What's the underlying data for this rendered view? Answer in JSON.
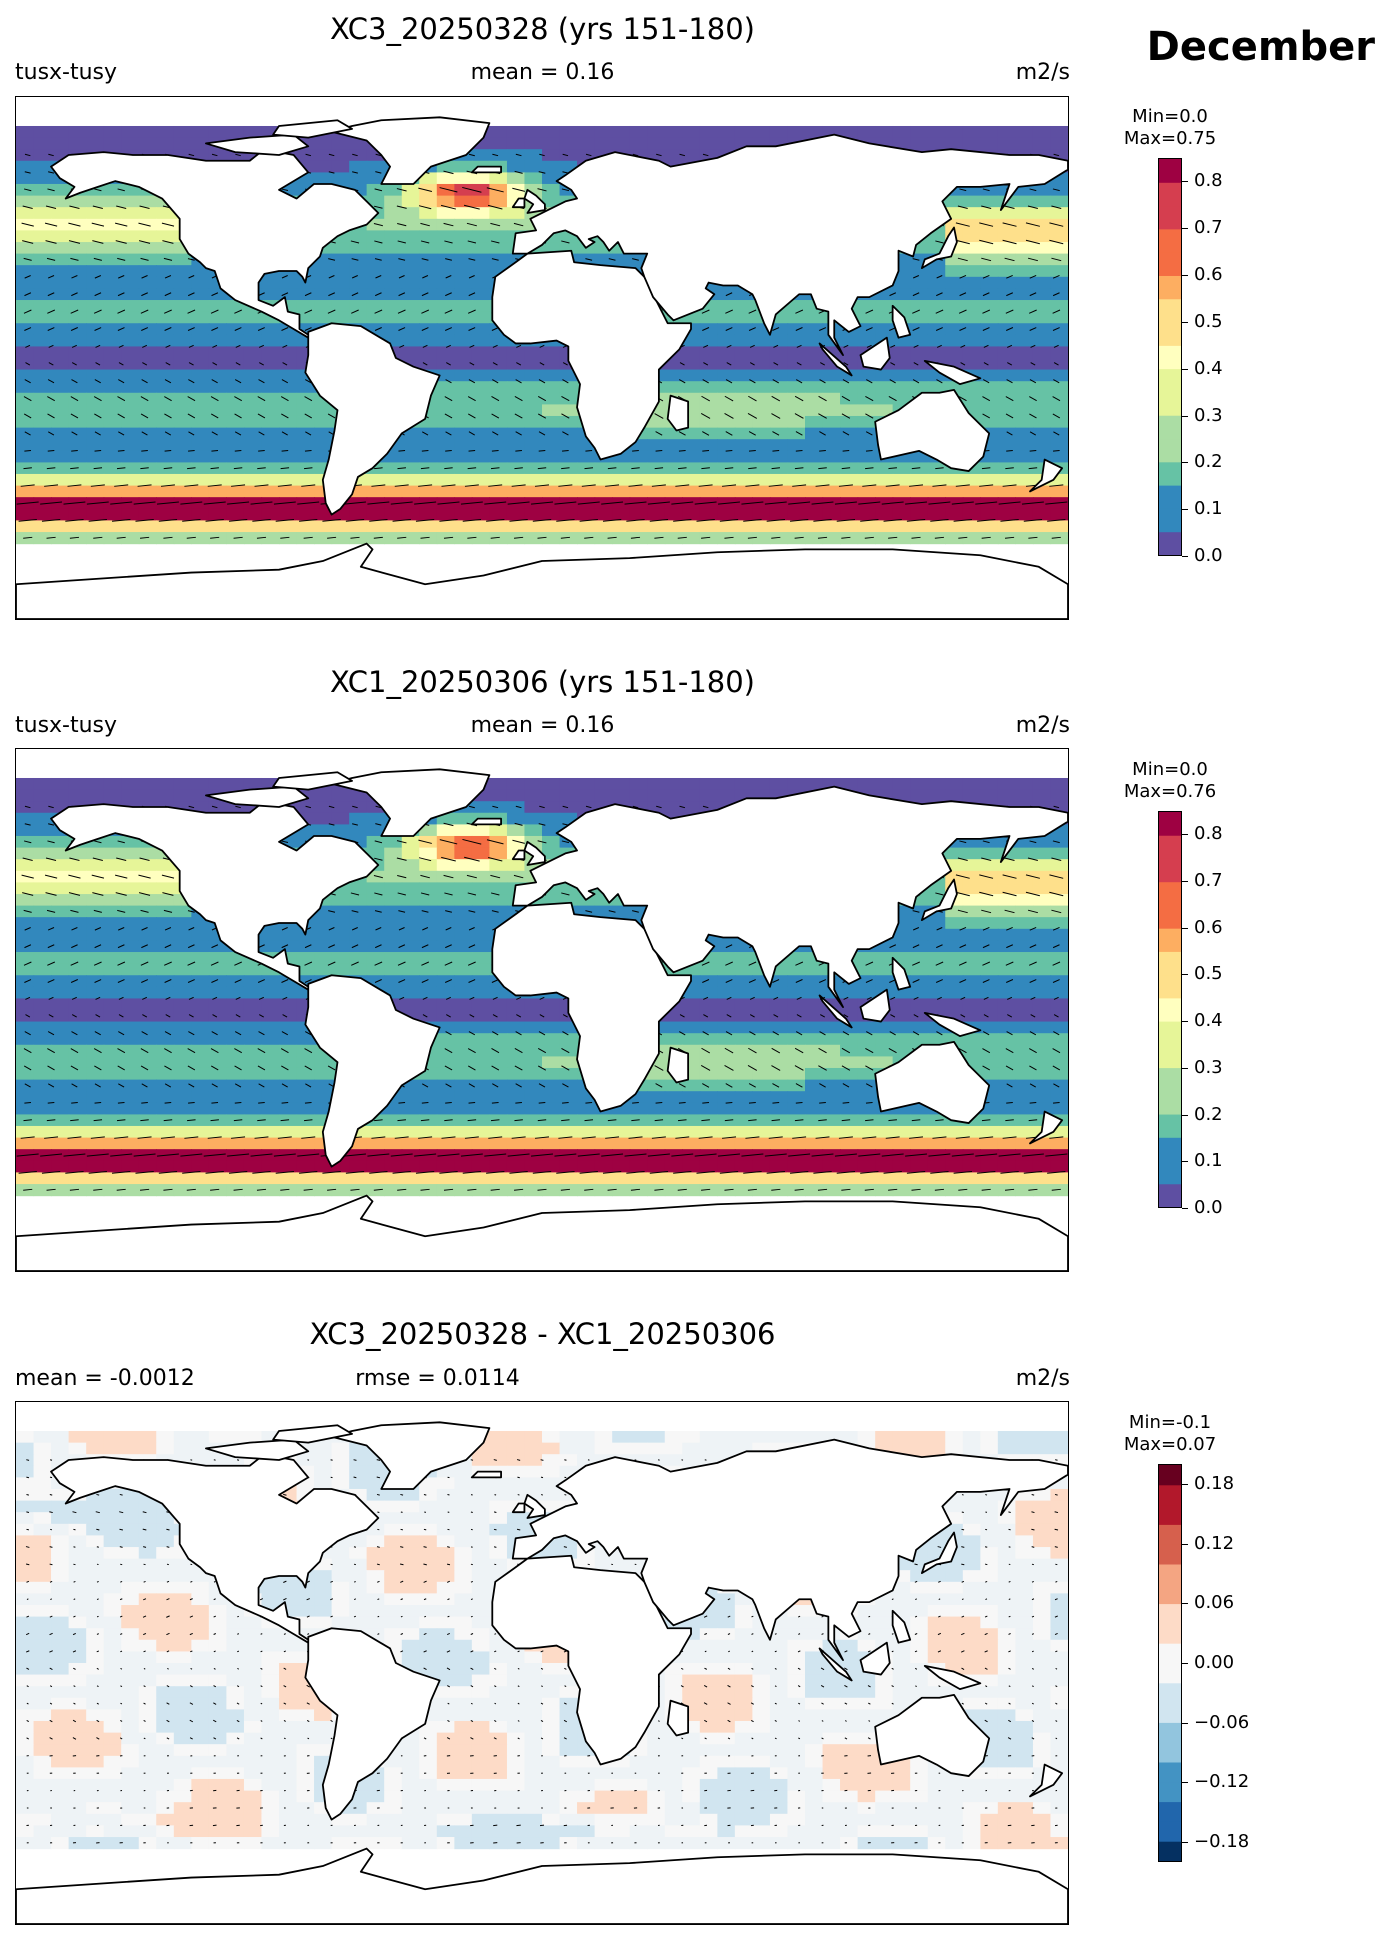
{
  "month_label": "December",
  "panels": [
    {
      "title": "XC3_20250328 (yrs 151-180)",
      "left_label": "tusx-tusy",
      "center_label": "mean = 0.16",
      "right_label": "m2/s",
      "colorbar": {
        "min_label": "Min=0.0",
        "max_label": "Max=0.75",
        "ticks": [
          "0.8",
          "0.7",
          "0.6",
          "0.5",
          "0.4",
          "0.3",
          "0.2",
          "0.1",
          "0.0"
        ]
      }
    },
    {
      "title": "XC1_20250306 (yrs 151-180)",
      "left_label": "tusx-tusy",
      "center_label": "mean = 0.16",
      "right_label": "m2/s",
      "colorbar": {
        "min_label": "Min=0.0",
        "max_label": "Max=0.76",
        "ticks": [
          "0.8",
          "0.7",
          "0.6",
          "0.5",
          "0.4",
          "0.3",
          "0.2",
          "0.1",
          "0.0"
        ]
      }
    },
    {
      "title": "XC3_20250328 - XC1_20250306",
      "left_label": "mean = -0.0012",
      "center_label": "rmse = 0.0114",
      "right_label": "m2/s",
      "colorbar": {
        "min_label": "Min=-0.1",
        "max_label": "Max=0.07",
        "ticks": [
          "0.18",
          "0.12",
          "0.06",
          "0.00",
          "−0.06",
          "−0.12",
          "−0.18"
        ]
      }
    }
  ],
  "chart_data": [
    {
      "type": "heatmap",
      "title": "XC3_20250328 (yrs 151-180)",
      "variable": "tusx-tusy",
      "units": "m2/s",
      "mean": 0.16,
      "min": 0.0,
      "max": 0.75,
      "colorbar_range": [
        0.0,
        0.85
      ],
      "colormap": "Spectral_r",
      "overlay": "vector arrows"
    },
    {
      "type": "heatmap",
      "title": "XC1_20250306 (yrs 151-180)",
      "variable": "tusx-tusy",
      "units": "m2/s",
      "mean": 0.16,
      "min": 0.0,
      "max": 0.76,
      "colorbar_range": [
        0.0,
        0.85
      ],
      "colormap": "Spectral_r",
      "overlay": "vector arrows"
    },
    {
      "type": "heatmap",
      "title": "XC3_20250328 - XC1_20250306",
      "units": "m2/s",
      "mean": -0.0012,
      "rmse": 0.0114,
      "min": -0.1,
      "max": 0.07,
      "colorbar_range": [
        -0.2,
        0.2
      ],
      "colormap": "RdBu_r",
      "overlay": "vector arrows"
    }
  ],
  "colors": {
    "seq": [
      "#5e4fa2",
      "#3288bd",
      "#66c2a5",
      "#abdda4",
      "#e6f598",
      "#ffffbf",
      "#fee08b",
      "#fdae61",
      "#f46d43",
      "#d53e4f",
      "#9e0142"
    ],
    "div": [
      "#053061",
      "#2166ac",
      "#4393c3",
      "#92c5de",
      "#d1e5f0",
      "#f7f7f7",
      "#fddbc7",
      "#f4a582",
      "#d6604d",
      "#b2182b",
      "#67001f"
    ],
    "diff_ocean": "#eef3f6"
  }
}
